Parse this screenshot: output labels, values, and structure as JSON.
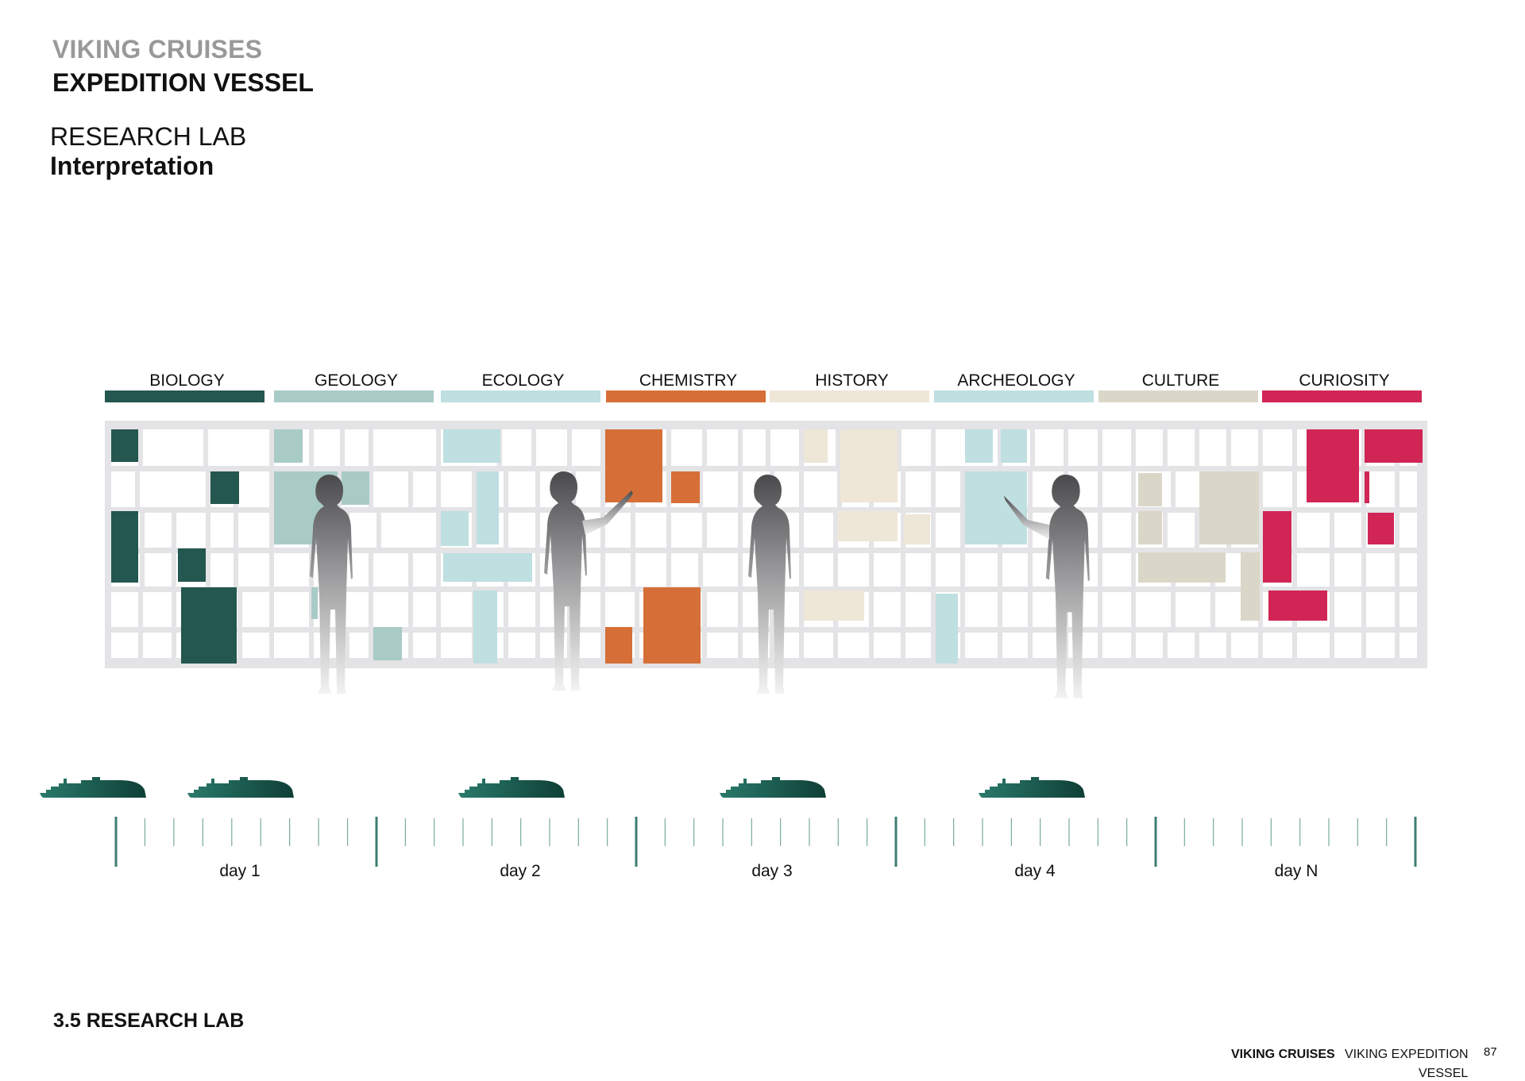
{
  "header": {
    "brand": "VIKING CRUISES",
    "vessel": "EXPEDITION VESSEL",
    "section": "RESEARCH LAB",
    "subsection": "Interpretation"
  },
  "colors": {
    "biology": "#24574f",
    "geology": "#a9cbc6",
    "ecology": "#bfdfe1",
    "chemistry": "#d66f37",
    "history": "#eee6d7",
    "archeology": "#bfdfe1",
    "culture": "#dbd7c8",
    "curiosity": "#d12556",
    "shelf": "#e4e3e5",
    "timeline": "#3d7d72",
    "ship": "#1b5b50"
  },
  "categories": [
    {
      "name": "BIOLOGY",
      "color": "#24574f"
    },
    {
      "name": "GEOLOGY",
      "color": "#a9cbc6"
    },
    {
      "name": "ECOLOGY",
      "color": "#bfdfe1"
    },
    {
      "name": "CHEMISTRY",
      "color": "#d66f37"
    },
    {
      "name": "HISTORY",
      "color": "#eee6d7"
    },
    {
      "name": "ARCHEOLOGY",
      "color": "#bfdfe1"
    },
    {
      "name": "CULTURE",
      "color": "#dbd7c8"
    },
    {
      "name": "CURIOSITY",
      "color": "#d12556"
    }
  ],
  "timeline": {
    "days": [
      "day 1",
      "day 2",
      "day 3",
      "day 4",
      "day N"
    ],
    "ship_icon": "ship-icon",
    "person_icon": "person-silhouette-icon"
  },
  "footer": {
    "section_number": "3.5 RESEARCH LAB",
    "brand": "VIKING CRUISES",
    "vessel_line1": "VIKING EXPEDITION",
    "vessel_line2": "VESSEL",
    "page": "87"
  }
}
